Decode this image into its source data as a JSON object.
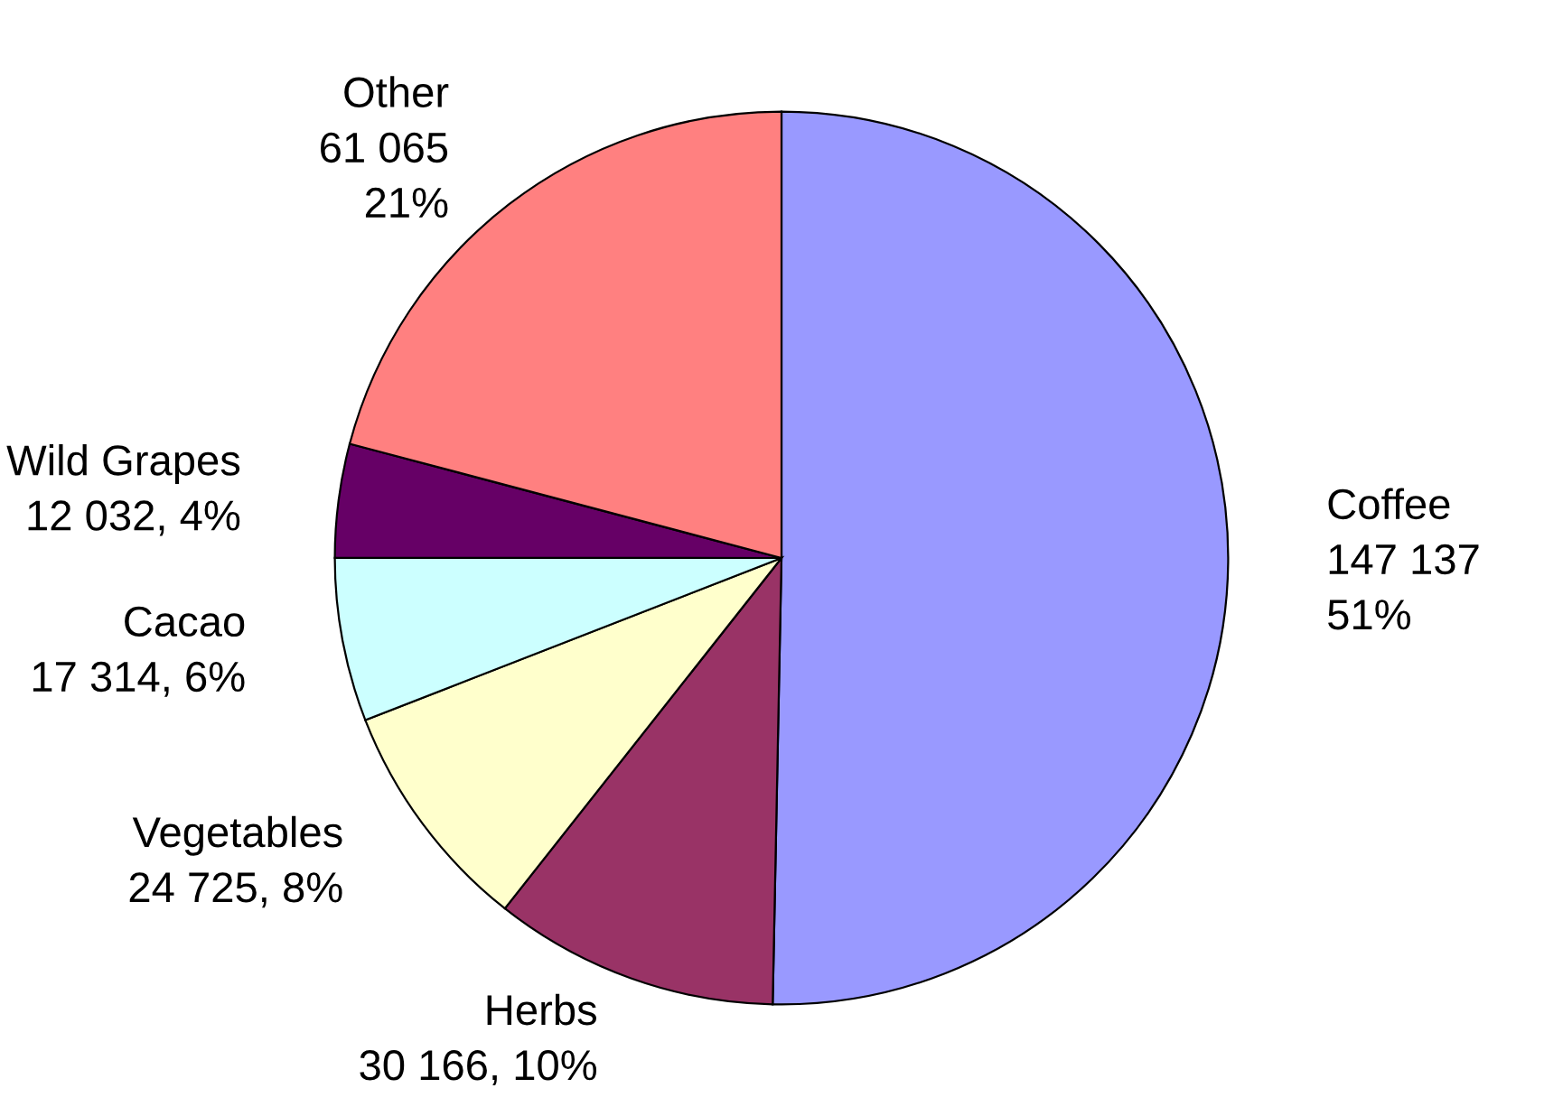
{
  "chart_data": {
    "type": "pie",
    "categories": [
      "Coffee",
      "Herbs",
      "Vegetables",
      "Cacao",
      "Wild Grapes",
      "Other"
    ],
    "values": [
      147137,
      30166,
      24725,
      17314,
      12032,
      61065
    ],
    "colors": [
      "#9999ff",
      "#993366",
      "#ffffcc",
      "#ccffff",
      "#660066",
      "#ff8080"
    ],
    "value_labels": [
      "147 137\n51%",
      "30 166, 10%",
      "24 725, 8%",
      "17 314, 6%",
      "12 032, 4%",
      "61 065\n21%"
    ],
    "legend": false
  }
}
